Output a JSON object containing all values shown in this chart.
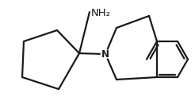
{
  "bg_color": "#ffffff",
  "line_color": "#1a1a1a",
  "line_width": 1.6,
  "N_label": "N",
  "NH2_label": "NH₂",
  "font_size_N": 8.5,
  "font_size_NH2": 9.5,
  "figsize": [
    2.46,
    1.37
  ],
  "dpi": 100,
  "xlim": [
    -0.05,
    1.05
  ],
  "ylim": [
    -0.05,
    0.72
  ]
}
